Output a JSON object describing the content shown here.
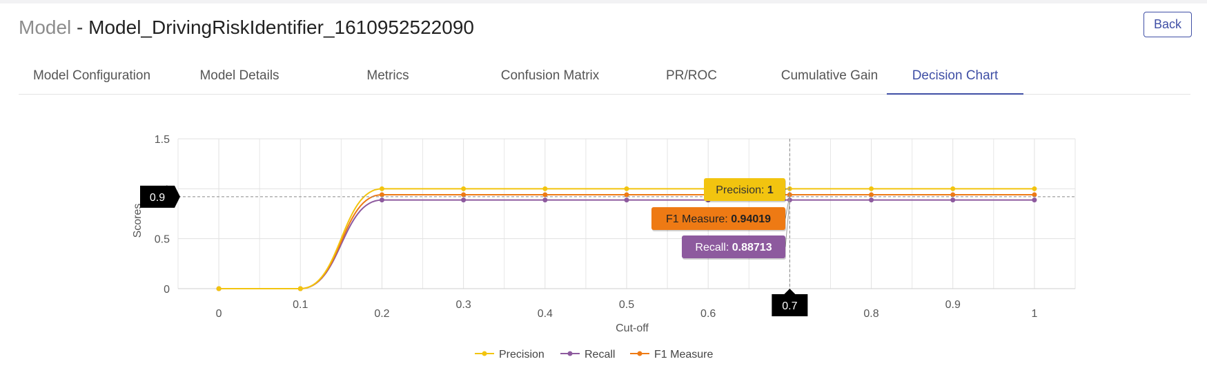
{
  "header": {
    "title_prefix": "Model",
    "title_separator": " - ",
    "model_name": "Model_DrivingRiskIdentifier_1610952522090",
    "back_label": "Back"
  },
  "tabs": [
    {
      "label": "Model Configuration",
      "active": false
    },
    {
      "label": "Model Details",
      "active": false
    },
    {
      "label": "Metrics",
      "active": false
    },
    {
      "label": "Confusion Matrix",
      "active": false
    },
    {
      "label": "PR/ROC",
      "active": false
    },
    {
      "label": "Cumulative Gain",
      "active": false
    },
    {
      "label": "Decision Chart",
      "active": true
    }
  ],
  "chart_data": {
    "type": "line",
    "title": "",
    "xlabel": "Cut-off",
    "ylabel": "Scores",
    "x": [
      0,
      0.1,
      0.2,
      0.3,
      0.4,
      0.5,
      0.6,
      0.7,
      0.8,
      0.9,
      1
    ],
    "x_tick_labels": [
      "0",
      "0.1",
      "0.2",
      "0.3",
      "0.4",
      "0.5",
      "0.6",
      "0.7",
      "0.8",
      "0.9",
      "1"
    ],
    "y_tick_labels": [
      "0",
      "0.5",
      "1",
      "1.5"
    ],
    "xlim": [
      -0.05,
      1.05
    ],
    "ylim": [
      0,
      1.5
    ],
    "grid": true,
    "smooth": true,
    "series": [
      {
        "name": "Precision",
        "color": "#f2c40f",
        "values": [
          0,
          0,
          1,
          1,
          1,
          1,
          1,
          1,
          1,
          1,
          1
        ]
      },
      {
        "name": "Recall",
        "color": "#8d5a9e",
        "values": [
          0,
          0,
          0.88713,
          0.88713,
          0.88713,
          0.88713,
          0.88713,
          0.88713,
          0.88713,
          0.88713,
          0.88713
        ]
      },
      {
        "name": "F1 Measure",
        "color": "#ee7a14",
        "values": [
          0,
          0,
          0.94019,
          0.94019,
          0.94019,
          0.94019,
          0.94019,
          0.94019,
          0.94019,
          0.94019,
          0.94019
        ]
      }
    ],
    "legend_position": "bottom",
    "crosshair": {
      "x": 0.7,
      "x_label": "0.7",
      "y": 0.92,
      "y_label": "0.9"
    },
    "tooltips": [
      {
        "series": "Precision",
        "label": "Precision: ",
        "value": "1",
        "color": "#f2c40f",
        "text_color": "#333333"
      },
      {
        "series": "F1 Measure",
        "label": "F1 Measure: ",
        "value": "0.94019",
        "color": "#ee7a14",
        "text_color": "#222222"
      },
      {
        "series": "Recall",
        "label": "Recall: ",
        "value": "0.88713",
        "color": "#8d5a9e",
        "text_color": "#ffffff"
      }
    ]
  }
}
